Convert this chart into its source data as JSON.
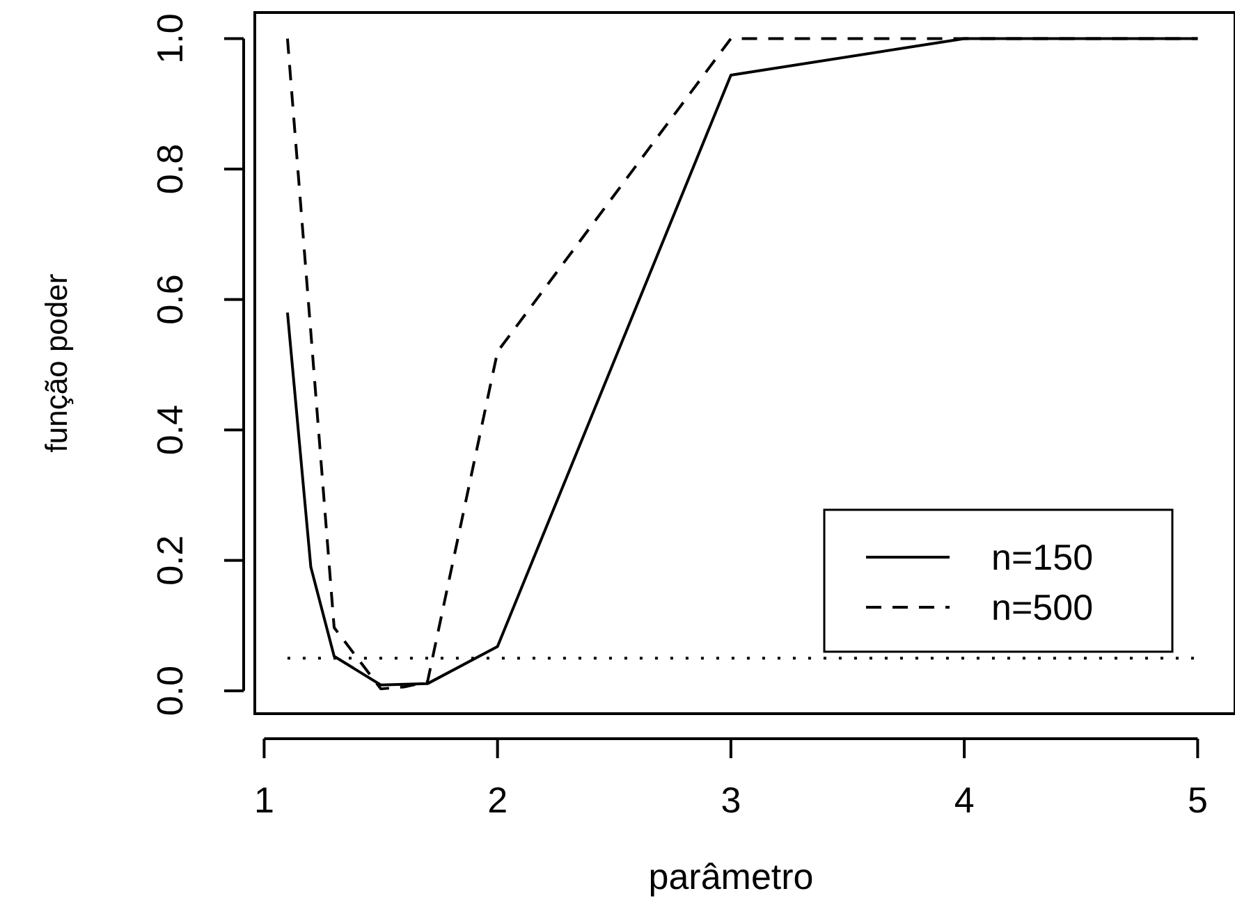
{
  "chart_data": {
    "type": "line",
    "xlabel": "parâmetro",
    "ylabel": "função poder",
    "xlim": [
      0.96,
      5.16
    ],
    "ylim": [
      -0.035,
      1.04
    ],
    "xticks": [
      1,
      2,
      3,
      4,
      5
    ],
    "yticks": [
      {
        "value": 0,
        "label": "0.0"
      },
      {
        "value": 0.2,
        "label": "0.2"
      },
      {
        "value": 0.4,
        "label": "0.4"
      },
      {
        "value": 0.6,
        "label": "0.6"
      },
      {
        "value": 0.8,
        "label": "0.8"
      },
      {
        "value": 1,
        "label": "1.0"
      }
    ],
    "grid": false,
    "legend": "bottom right",
    "marker": "none",
    "series": [
      {
        "name": "n=150",
        "color": "#000000",
        "line_style": "solid",
        "x": [
          1.1,
          1.2,
          1.3,
          1.5,
          1.6,
          1.7,
          2,
          3,
          4,
          5
        ],
        "values": [
          0.58,
          0.19,
          0.053,
          0.009,
          0.01,
          0.011,
          0.068,
          0.944,
          1,
          1
        ]
      },
      {
        "name": "n=500",
        "color": "#000000",
        "line_style": "dashed",
        "x": [
          1.1,
          1.2,
          1.3,
          1.5,
          1.6,
          1.7,
          2,
          3,
          4,
          5
        ],
        "values": [
          1,
          0.55,
          0.097,
          0.003,
          0.006,
          0.014,
          0.52,
          1,
          1,
          1
        ]
      },
      {
        "color": "#000000",
        "line_style": "dotted",
        "x": [
          1.1,
          5
        ],
        "values": [
          0.05,
          0.05
        ]
      }
    ]
  }
}
